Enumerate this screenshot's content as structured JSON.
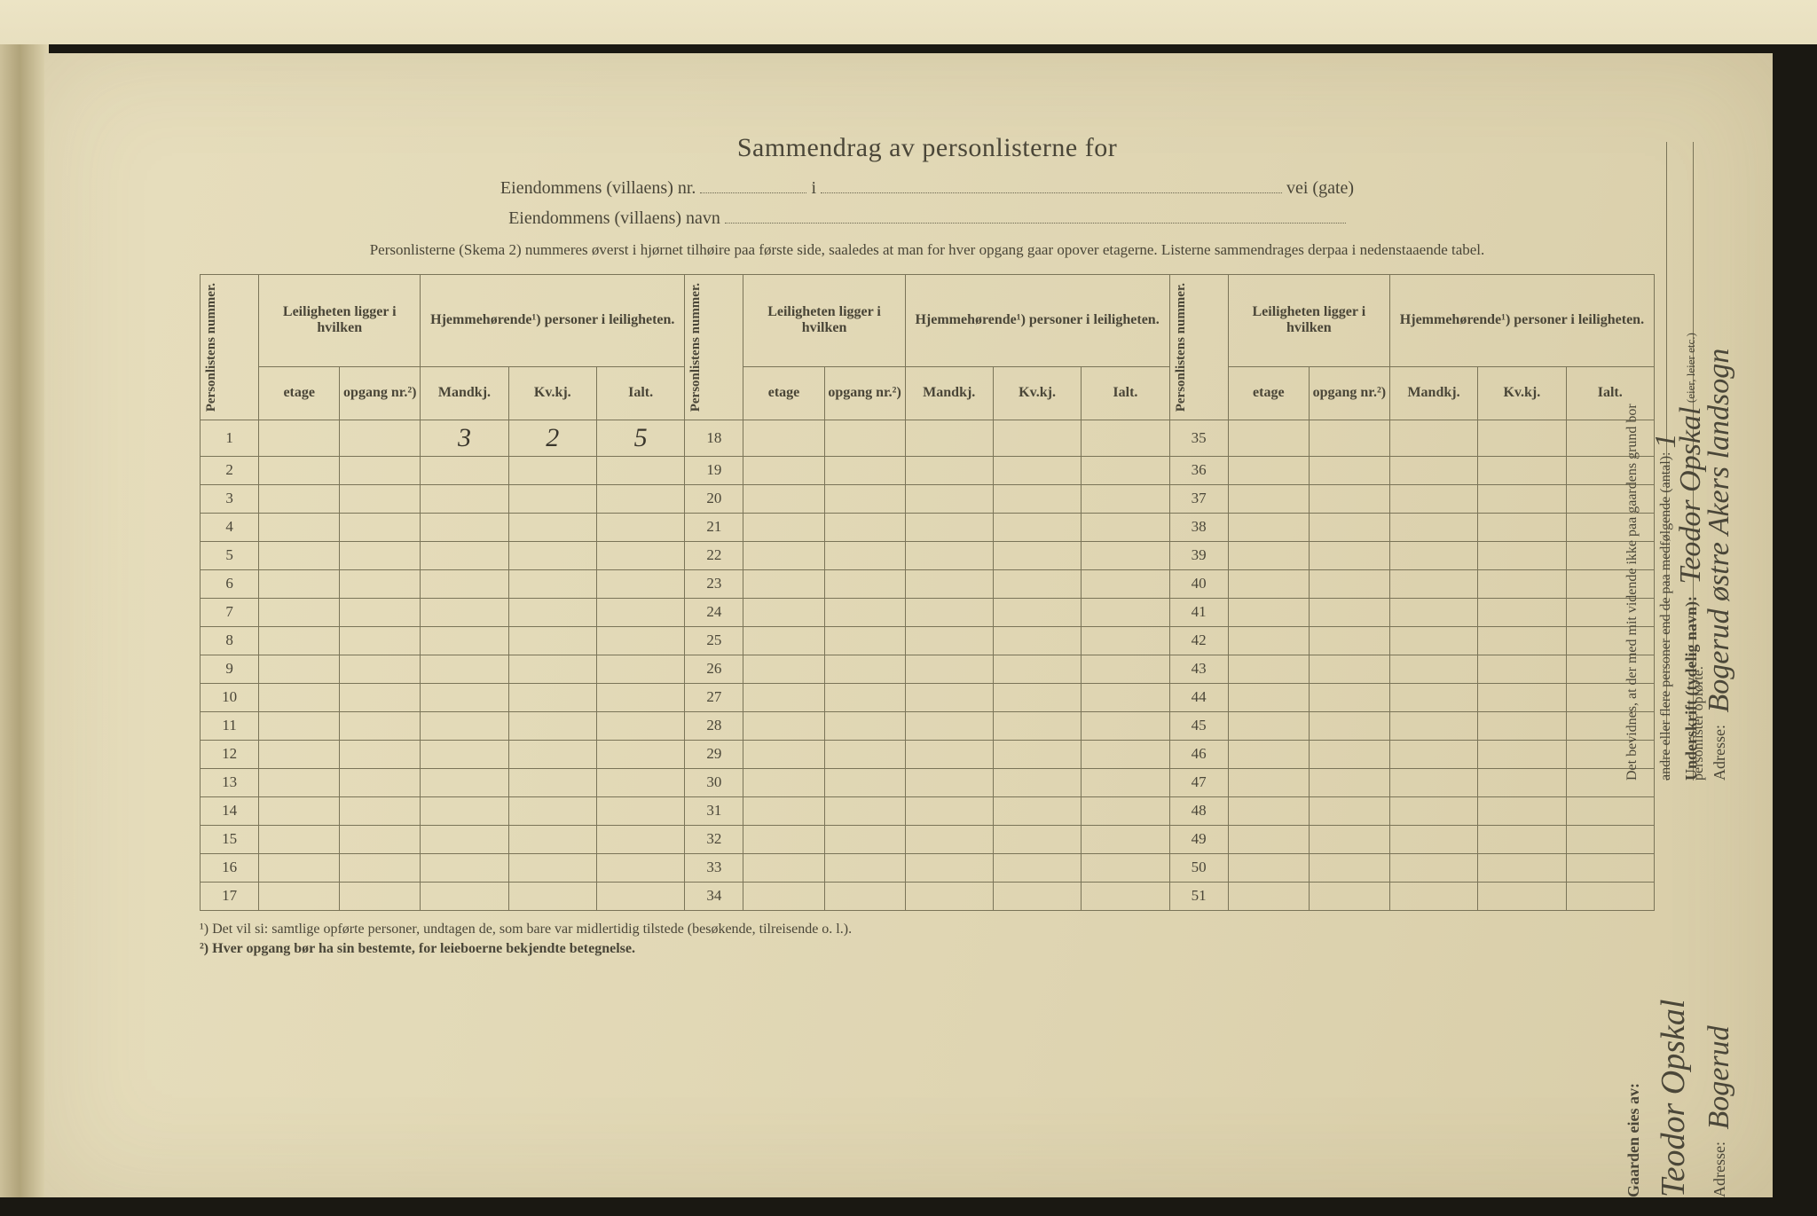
{
  "title": "Sammendrag av personlisterne for",
  "property_nr_label": "Eiendommens (villaens) nr.",
  "property_nr_mid": "i",
  "property_nr_suffix": "vei (gate)",
  "property_name_label": "Eiendommens (villaens) navn",
  "instructions": "Personlisterne (Skema 2) nummeres øverst i hjørnet tilhøire paa første side, saaledes at man for hver opgang gaar opover etagerne.  Listerne sammendrages derpaa i nedenstaaende tabel.",
  "headers": {
    "personlistens": "Personlistens nummer.",
    "leilighet_group": "Leiligheten ligger i hvilken",
    "hjemme_group": "Hjemmehørende¹) personer i leiligheten.",
    "etage": "etage",
    "opgang": "opgang nr.²)",
    "mandkj": "Mandkj.",
    "kvkj": "Kv.kj.",
    "ialt": "Ialt."
  },
  "blocks": [
    {
      "start": 1,
      "end": 17
    },
    {
      "start": 18,
      "end": 34
    },
    {
      "start": 35,
      "end": 51
    }
  ],
  "row1": {
    "mandkj": "3",
    "kvkj": "2",
    "ialt": "5"
  },
  "footnote1": "¹) Det vil si: samtlige opførte personer, undtagen de, som bare var midlertidig tilstede (besøkende, tilreisende o. l.).",
  "footnote2": "²) Hver opgang bør ha sin bestemte, for leieboerne bekjendte betegnelse.",
  "side": {
    "attest_line1": "Det bevidnes, at der med mit vidende ikke paa gaardens grund bor",
    "attest_line2": "andre eller flere personer end de paa medfølgende (antal):",
    "attest_line3": "personlister opførte.",
    "attest_count": "1",
    "underskrift_label": "Underskrift (tydelig navn):",
    "underskrift_value": "Teodor Opskal",
    "underskrift_role": "(eier, leier etc.)",
    "adresse_label": "Adresse:",
    "adresse_value": "Bogerud østre Akers landsogn",
    "owner_label": "Gaarden eies av:",
    "owner_value": "Teodor Opskal",
    "owner_adresse_label": "Adresse:",
    "owner_adresse_value": "Bogerud"
  }
}
